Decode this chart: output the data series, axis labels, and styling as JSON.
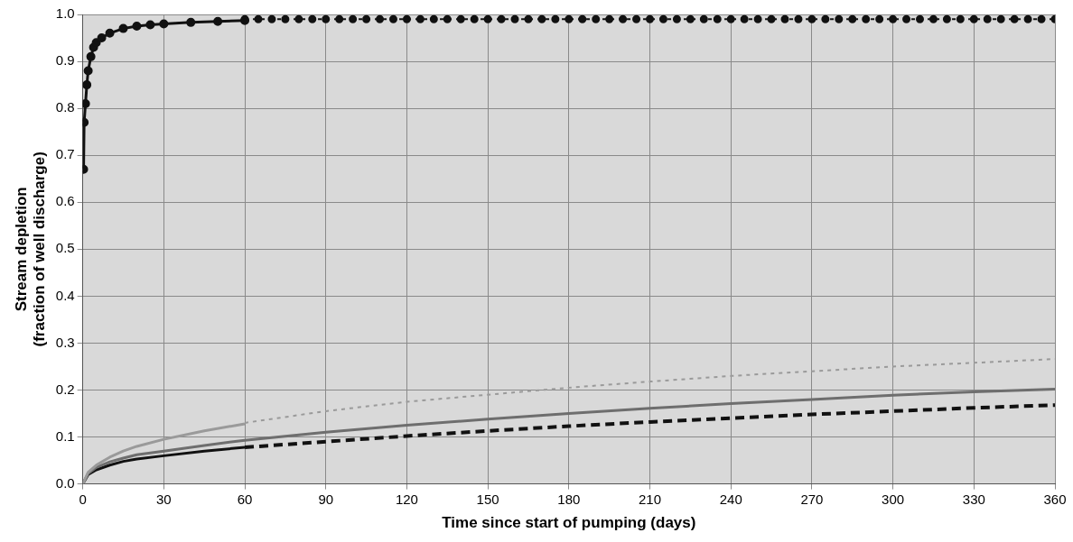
{
  "chart_data": {
    "type": "line",
    "xlabel": "Time since start of pumping (days)",
    "ylabel": "Stream depletion\n(fraction of well discharge)",
    "xlim": [
      0,
      360
    ],
    "ylim": [
      0,
      1
    ],
    "xticks": [
      0,
      30,
      60,
      90,
      120,
      150,
      180,
      210,
      240,
      270,
      300,
      330,
      360
    ],
    "yticks": [
      {
        "value": 0,
        "label": "0.0"
      },
      0.1,
      0.2,
      0.3,
      0.4,
      0.5,
      0.6,
      0.7,
      0.8,
      0.9,
      {
        "value": 1,
        "label": "1.0"
      }
    ],
    "grid": true,
    "legend": false,
    "series": [
      {
        "color": "#111111",
        "marker": "circle",
        "line_style": "solid",
        "x": [
          0.3,
          0.5,
          1,
          1.5,
          2,
          3,
          4,
          5,
          7,
          10,
          15,
          20,
          25,
          30,
          40,
          50,
          60
        ],
        "values": [
          0.67,
          0.77,
          0.81,
          0.85,
          0.88,
          0.91,
          0.93,
          0.94,
          0.95,
          0.96,
          0.97,
          0.975,
          0.978,
          0.98,
          0.983,
          0.985,
          0.987
        ]
      },
      {
        "color": "#111111",
        "marker": "circle",
        "line_style": "dotted",
        "x": [
          60,
          65,
          70,
          75,
          80,
          85,
          90,
          95,
          100,
          105,
          110,
          115,
          120,
          125,
          130,
          135,
          140,
          145,
          150,
          155,
          160,
          165,
          170,
          175,
          180,
          185,
          190,
          195,
          200,
          205,
          210,
          215,
          220,
          225,
          230,
          235,
          240,
          245,
          250,
          255,
          260,
          265,
          270,
          275,
          280,
          285,
          290,
          295,
          300,
          305,
          310,
          315,
          320,
          325,
          330,
          335,
          340,
          345,
          350,
          355,
          360
        ],
        "values": [
          0.99,
          0.99,
          0.99,
          0.99,
          0.99,
          0.99,
          0.99,
          0.99,
          0.99,
          0.99,
          0.99,
          0.99,
          0.99,
          0.99,
          0.99,
          0.99,
          0.99,
          0.99,
          0.99,
          0.99,
          0.99,
          0.99,
          0.99,
          0.99,
          0.99,
          0.99,
          0.99,
          0.99,
          0.99,
          0.99,
          0.99,
          0.99,
          0.99,
          0.99,
          0.99,
          0.99,
          0.99,
          0.99,
          0.99,
          0.99,
          0.99,
          0.99,
          0.99,
          0.99,
          0.99,
          0.99,
          0.99,
          0.99,
          0.99,
          0.99,
          0.99,
          0.99,
          0.99,
          0.99,
          0.99,
          0.99,
          0.99,
          0.99,
          0.99,
          0.99,
          0.99
        ]
      },
      {
        "color": "#9a9a9a",
        "marker": "none",
        "line_style": "solid",
        "x": [
          0,
          2,
          5,
          10,
          15,
          20,
          30,
          45,
          60
        ],
        "values": [
          0,
          0.025,
          0.04,
          0.057,
          0.07,
          0.08,
          0.095,
          0.113,
          0.128
        ]
      },
      {
        "color": "#9a9a9a",
        "marker": "none",
        "line_style": "dotted",
        "x": [
          60,
          90,
          120,
          150,
          180,
          210,
          240,
          270,
          300,
          330,
          360
        ],
        "values": [
          0.13,
          0.155,
          0.175,
          0.19,
          0.205,
          0.218,
          0.23,
          0.24,
          0.25,
          0.258,
          0.266
        ]
      },
      {
        "color": "#6e6e6e",
        "marker": "none",
        "line_style": "solid",
        "x": [
          0,
          2,
          5,
          10,
          15,
          20,
          30,
          45,
          60,
          90,
          120,
          150,
          180,
          210,
          240,
          270,
          300,
          330,
          360
        ],
        "values": [
          0,
          0.022,
          0.035,
          0.047,
          0.055,
          0.062,
          0.07,
          0.082,
          0.093,
          0.11,
          0.125,
          0.138,
          0.15,
          0.161,
          0.171,
          0.18,
          0.189,
          0.196,
          0.202
        ]
      },
      {
        "color": "#111111",
        "marker": "none",
        "line_style": "solid",
        "x": [
          0,
          2,
          5,
          10,
          15,
          20,
          30,
          45,
          60
        ],
        "values": [
          0,
          0.02,
          0.03,
          0.04,
          0.048,
          0.053,
          0.06,
          0.07,
          0.078
        ]
      },
      {
        "color": "#111111",
        "marker": "none",
        "line_style": "dashed",
        "x": [
          60,
          90,
          120,
          150,
          180,
          210,
          240,
          270,
          300,
          330,
          360
        ],
        "values": [
          0.078,
          0.09,
          0.102,
          0.113,
          0.123,
          0.132,
          0.14,
          0.148,
          0.155,
          0.162,
          0.168
        ]
      }
    ]
  }
}
